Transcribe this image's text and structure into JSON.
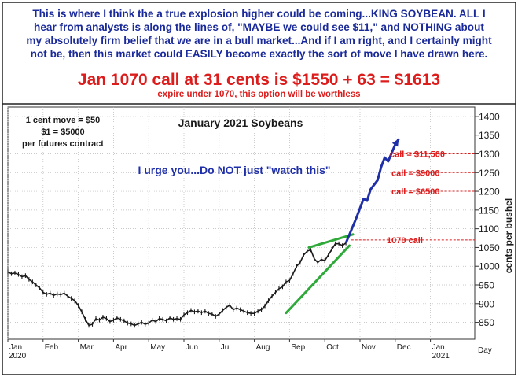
{
  "header": {
    "lines": [
      "This is where I think the a true explosion higher could be coming...KING SOYBEAN. ALL I",
      "hear from analysts is along the lines of, \"MAYBE we could see $11,\" and NOTHING about",
      "my absolutely firm belief that we are in a bull market...And if I am right, and I certainly might",
      "not be, then this market could EASILY become exactly the sort of move I have drawn here."
    ],
    "headline": "Jan 1070 call at 31 cents is $1550 + 63 = $1613",
    "subline": "expire under 1070, this option will be worthless"
  },
  "colors": {
    "header_text": "#1a2a9a",
    "headline": "#dd1c1c",
    "price": "#1a1a1a",
    "trend": "#2faa3a",
    "projection": "#1f2fa8",
    "levels": "#dd1c1c"
  },
  "chart_data": {
    "type": "line",
    "title": "January 2021 Soybeans",
    "ylabel": "cents per bushel",
    "xlabel": "Day",
    "ylim": [
      805,
      1425
    ],
    "y_ticks": [
      850,
      900,
      950,
      1000,
      1050,
      1100,
      1150,
      1200,
      1250,
      1300,
      1350,
      1400
    ],
    "x_ticks": [
      "Jan",
      "Feb",
      "Mar",
      "Apr",
      "May",
      "Jun",
      "Jul",
      "Aug",
      "Sep",
      "Oct",
      "Nov",
      "Dec",
      "Jan"
    ],
    "year_labels": [
      "2020",
      "2021"
    ],
    "grid": true,
    "notes": {
      "contract": [
        "1 cent move = $50",
        "$1 = $5000",
        "per futures contract"
      ],
      "urge": "I urge you...Do NOT just \"watch this\""
    },
    "series": [
      {
        "values": [
          [
            0.0,
            985
          ],
          [
            0.1,
            980
          ],
          [
            0.2,
            982
          ],
          [
            0.3,
            978
          ],
          [
            0.4,
            972
          ],
          [
            0.5,
            975
          ],
          [
            0.6,
            965
          ],
          [
            0.7,
            958
          ],
          [
            0.8,
            950
          ],
          [
            0.9,
            942
          ],
          [
            1.0,
            930
          ],
          [
            1.1,
            925
          ],
          [
            1.2,
            928
          ],
          [
            1.3,
            922
          ],
          [
            1.4,
            926
          ],
          [
            1.5,
            924
          ],
          [
            1.6,
            928
          ],
          [
            1.7,
            920
          ],
          [
            1.8,
            914
          ],
          [
            1.9,
            908
          ],
          [
            2.0,
            895
          ],
          [
            2.1,
            878
          ],
          [
            2.2,
            858
          ],
          [
            2.3,
            842
          ],
          [
            2.4,
            845
          ],
          [
            2.5,
            860
          ],
          [
            2.6,
            856
          ],
          [
            2.7,
            864
          ],
          [
            2.8,
            860
          ],
          [
            2.9,
            852
          ],
          [
            3.0,
            856
          ],
          [
            3.1,
            862
          ],
          [
            3.2,
            858
          ],
          [
            3.3,
            854
          ],
          [
            3.4,
            848
          ],
          [
            3.5,
            846
          ],
          [
            3.6,
            842
          ],
          [
            3.7,
            846
          ],
          [
            3.8,
            850
          ],
          [
            3.9,
            845
          ],
          [
            4.0,
            848
          ],
          [
            4.1,
            856
          ],
          [
            4.2,
            852
          ],
          [
            4.3,
            860
          ],
          [
            4.4,
            858
          ],
          [
            4.5,
            854
          ],
          [
            4.6,
            862
          ],
          [
            4.7,
            858
          ],
          [
            4.8,
            860
          ],
          [
            4.9,
            858
          ],
          [
            5.0,
            870
          ],
          [
            5.1,
            876
          ],
          [
            5.2,
            882
          ],
          [
            5.3,
            878
          ],
          [
            5.4,
            880
          ],
          [
            5.5,
            876
          ],
          [
            5.6,
            880
          ],
          [
            5.7,
            874
          ],
          [
            5.8,
            872
          ],
          [
            5.9,
            866
          ],
          [
            6.0,
            872
          ],
          [
            6.1,
            882
          ],
          [
            6.2,
            890
          ],
          [
            6.3,
            896
          ],
          [
            6.4,
            884
          ],
          [
            6.5,
            888
          ],
          [
            6.6,
            884
          ],
          [
            6.7,
            880
          ],
          [
            6.8,
            876
          ],
          [
            6.9,
            874
          ],
          [
            7.0,
            874
          ],
          [
            7.1,
            880
          ],
          [
            7.2,
            884
          ],
          [
            7.3,
            894
          ],
          [
            7.4,
            908
          ],
          [
            7.5,
            920
          ],
          [
            7.6,
            930
          ],
          [
            7.7,
            940
          ],
          [
            7.8,
            945
          ],
          [
            7.9,
            958
          ],
          [
            8.0,
            962
          ],
          [
            8.1,
            980
          ],
          [
            8.2,
            1000
          ],
          [
            8.3,
            1010
          ],
          [
            8.4,
            1030
          ],
          [
            8.5,
            1040
          ],
          [
            8.6,
            1044
          ],
          [
            8.7,
            1020
          ],
          [
            8.8,
            1010
          ],
          [
            8.9,
            1018
          ],
          [
            9.0,
            1015
          ],
          [
            9.1,
            1030
          ],
          [
            9.2,
            1045
          ],
          [
            9.3,
            1060
          ],
          [
            9.4,
            1060
          ],
          [
            9.5,
            1055
          ],
          [
            9.6,
            1062
          ]
        ]
      },
      {
        "name": "projection",
        "values": [
          [
            9.6,
            1062
          ],
          [
            9.9,
            1130
          ],
          [
            10.1,
            1180
          ],
          [
            10.2,
            1175
          ],
          [
            10.3,
            1205
          ],
          [
            10.5,
            1230
          ],
          [
            10.6,
            1265
          ],
          [
            10.7,
            1290
          ],
          [
            10.8,
            1280
          ],
          [
            11.0,
            1325
          ],
          [
            11.1,
            1340
          ]
        ]
      }
    ],
    "trendlines": [
      [
        [
          7.9,
          875
        ],
        [
          9.7,
          1055
        ]
      ],
      [
        [
          8.55,
          1050
        ],
        [
          9.8,
          1085
        ]
      ]
    ],
    "levels": [
      {
        "label": "1070 call",
        "value": 1070
      },
      {
        "label": "call = $6500",
        "value": 1200
      },
      {
        "label": "call = $9000",
        "value": 1250
      },
      {
        "label": "call = $11,500",
        "value": 1300
      }
    ]
  }
}
